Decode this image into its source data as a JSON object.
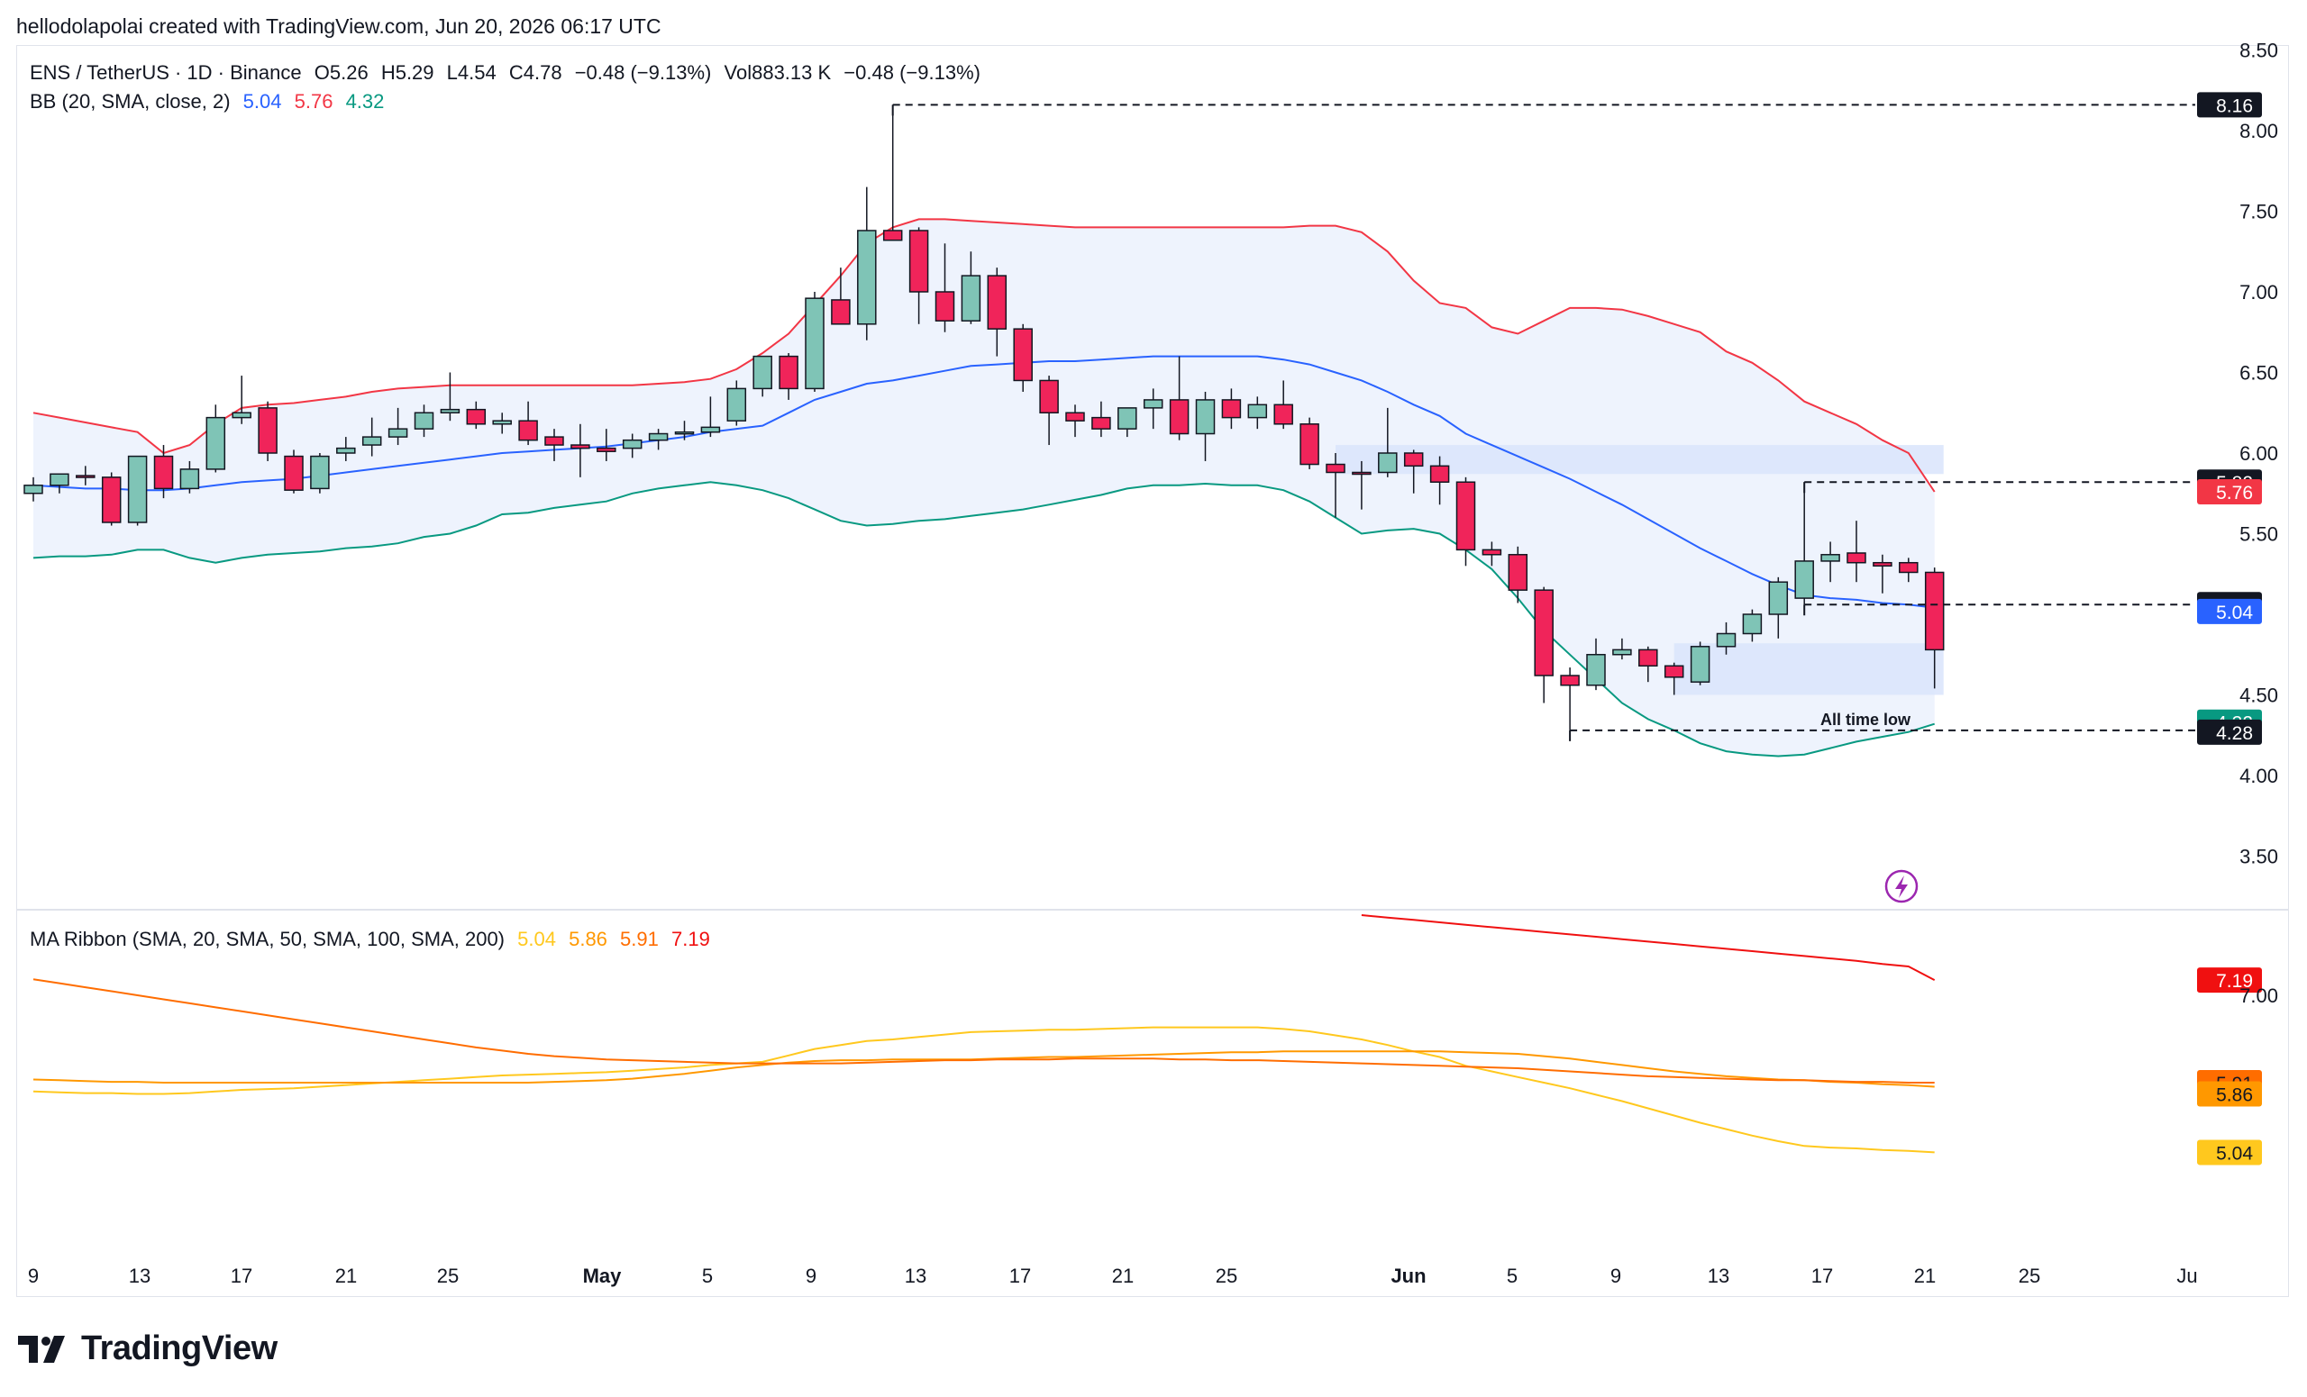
{
  "attribution": "hellodolapolai created with TradingView.com, Jun 20, 2026 06:17 UTC",
  "brand": "TradingView",
  "legend": {
    "main": {
      "symbol": "ENS / TetherUS · 1D · Binance",
      "open_label": "O",
      "open": "5.26",
      "high_label": "H",
      "high": "5.29",
      "low_label": "L",
      "low": "4.54",
      "close_label": "C",
      "close": "4.78",
      "change": "−0.48 (−9.13%)",
      "vol_label": "Vol",
      "vol": "883.13 K",
      "vol_change": "−0.48 (−9.13%)"
    },
    "bb": {
      "name": "BB (20, SMA, close, 2)",
      "basis": "5.04",
      "upper": "5.76",
      "lower": "4.32"
    },
    "ma": {
      "name": "MA Ribbon (SMA, 20, SMA, 50, SMA, 100, SMA, 200)",
      "ma20": "5.04",
      "ma50": "5.86",
      "ma100": "5.91",
      "ma200": "7.19"
    }
  },
  "colors": {
    "up": "#7fc4b6",
    "down": "#f0245a",
    "bb_basis": "#2962ff",
    "bb_upper": "#f23645",
    "bb_lower": "#089981",
    "bb_fill": "#eef3fd",
    "zone": "#d9e4fb",
    "ma20": "#ffc81e",
    "ma50": "#ff9800",
    "ma100": "#ff6d00",
    "ma200": "#f01010"
  },
  "annotations": {
    "all_time_low": "All time low"
  },
  "chart_data": [
    {
      "type": "candlestick",
      "title": "ENS / TetherUS · 1D · Binance",
      "ylim": [
        3.4,
        8.6
      ],
      "y_ticks": [
        "8.50",
        "8.00",
        "7.50",
        "7.00",
        "6.50",
        "6.00",
        "5.50",
        "4.50",
        "4.00",
        "3.50"
      ],
      "x_ticks": [
        "9",
        "13",
        "17",
        "21",
        "25",
        "May",
        "5",
        "9",
        "13",
        "17",
        "21",
        "25",
        "Jun",
        "5",
        "9",
        "13",
        "17",
        "21",
        "25",
        "Ju"
      ],
      "candles": [
        [
          5.75,
          5.85,
          5.7,
          5.8
        ],
        [
          5.8,
          5.86,
          5.75,
          5.87
        ],
        [
          5.86,
          5.92,
          5.8,
          5.85
        ],
        [
          5.85,
          5.88,
          5.55,
          5.57
        ],
        [
          5.57,
          5.98,
          5.55,
          5.98
        ],
        [
          5.98,
          6.05,
          5.72,
          5.78
        ],
        [
          5.78,
          5.95,
          5.75,
          5.9
        ],
        [
          5.9,
          6.3,
          5.88,
          6.22
        ],
        [
          6.22,
          6.48,
          6.18,
          6.25
        ],
        [
          6.28,
          6.32,
          5.95,
          6.0
        ],
        [
          5.98,
          6.02,
          5.75,
          5.77
        ],
        [
          5.78,
          6.0,
          5.75,
          5.98
        ],
        [
          6.0,
          6.1,
          5.95,
          6.03
        ],
        [
          6.05,
          6.22,
          5.98,
          6.1
        ],
        [
          6.1,
          6.28,
          6.05,
          6.15
        ],
        [
          6.15,
          6.3,
          6.1,
          6.25
        ],
        [
          6.25,
          6.5,
          6.2,
          6.27
        ],
        [
          6.27,
          6.32,
          6.15,
          6.18
        ],
        [
          6.18,
          6.25,
          6.12,
          6.2
        ],
        [
          6.2,
          6.32,
          6.05,
          6.08
        ],
        [
          6.1,
          6.15,
          5.95,
          6.05
        ],
        [
          6.05,
          6.18,
          5.85,
          6.03
        ],
        [
          6.03,
          6.15,
          5.95,
          6.01
        ],
        [
          6.03,
          6.12,
          5.97,
          6.08
        ],
        [
          6.08,
          6.15,
          6.02,
          6.12
        ],
        [
          6.12,
          6.2,
          6.08,
          6.13
        ],
        [
          6.13,
          6.35,
          6.1,
          6.16
        ],
        [
          6.2,
          6.45,
          6.17,
          6.4
        ],
        [
          6.4,
          6.6,
          6.35,
          6.6
        ],
        [
          6.6,
          6.62,
          6.33,
          6.4
        ],
        [
          6.4,
          7.0,
          6.38,
          6.96
        ],
        [
          6.95,
          7.15,
          6.8,
          6.8
        ],
        [
          6.8,
          7.65,
          6.7,
          7.38
        ],
        [
          7.38,
          8.16,
          7.32,
          7.32
        ],
        [
          7.38,
          7.4,
          6.8,
          7.0
        ],
        [
          7.0,
          7.3,
          6.75,
          6.82
        ],
        [
          6.82,
          7.25,
          6.8,
          7.1
        ],
        [
          7.1,
          7.15,
          6.6,
          6.77
        ],
        [
          6.77,
          6.8,
          6.38,
          6.45
        ],
        [
          6.45,
          6.48,
          6.05,
          6.25
        ],
        [
          6.25,
          6.3,
          6.1,
          6.2
        ],
        [
          6.22,
          6.32,
          6.1,
          6.15
        ],
        [
          6.15,
          6.28,
          6.1,
          6.28
        ],
        [
          6.28,
          6.4,
          6.15,
          6.33
        ],
        [
          6.33,
          6.6,
          6.08,
          6.12
        ],
        [
          6.12,
          6.38,
          5.95,
          6.33
        ],
        [
          6.33,
          6.4,
          6.15,
          6.22
        ],
        [
          6.22,
          6.35,
          6.15,
          6.3
        ],
        [
          6.3,
          6.45,
          6.15,
          6.18
        ],
        [
          6.18,
          6.22,
          5.9,
          5.93
        ],
        [
          5.93,
          6.0,
          5.6,
          5.88
        ],
        [
          5.88,
          5.95,
          5.65,
          5.87
        ],
        [
          5.88,
          6.28,
          5.85,
          6.0
        ],
        [
          6.0,
          6.02,
          5.75,
          5.92
        ],
        [
          5.92,
          5.98,
          5.68,
          5.82
        ],
        [
          5.82,
          5.85,
          5.3,
          5.4
        ],
        [
          5.4,
          5.45,
          5.3,
          5.37
        ],
        [
          5.37,
          5.42,
          5.07,
          5.15
        ],
        [
          5.15,
          5.17,
          4.45,
          4.62
        ],
        [
          4.62,
          4.67,
          4.28,
          4.56
        ],
        [
          4.56,
          4.85,
          4.53,
          4.75
        ],
        [
          4.75,
          4.85,
          4.72,
          4.78
        ],
        [
          4.78,
          4.8,
          4.58,
          4.68
        ],
        [
          4.68,
          4.7,
          4.5,
          4.61
        ],
        [
          4.58,
          4.83,
          4.56,
          4.8
        ],
        [
          4.8,
          4.95,
          4.75,
          4.88
        ],
        [
          4.88,
          5.03,
          4.83,
          5.0
        ],
        [
          5.0,
          5.23,
          4.85,
          5.2
        ],
        [
          5.1,
          5.82,
          5.06,
          5.33
        ],
        [
          5.33,
          5.45,
          5.2,
          5.37
        ],
        [
          5.38,
          5.58,
          5.2,
          5.32
        ],
        [
          5.32,
          5.37,
          5.13,
          5.3
        ],
        [
          5.32,
          5.35,
          5.2,
          5.26
        ],
        [
          5.26,
          5.29,
          4.54,
          4.78
        ]
      ]
    },
    {
      "type": "line",
      "title": "BB (20, SMA, close, 2)",
      "series": [
        {
          "name": "upper",
          "values": [
            6.25,
            6.22,
            6.19,
            6.16,
            6.13,
            6.0,
            6.05,
            6.18,
            6.28,
            6.3,
            6.31,
            6.33,
            6.35,
            6.38,
            6.4,
            6.41,
            6.42,
            6.42,
            6.42,
            6.42,
            6.42,
            6.42,
            6.42,
            6.42,
            6.43,
            6.44,
            6.46,
            6.52,
            6.62,
            6.74,
            6.92,
            7.1,
            7.3,
            7.4,
            7.45,
            7.45,
            7.44,
            7.43,
            7.42,
            7.41,
            7.4,
            7.4,
            7.4,
            7.4,
            7.4,
            7.4,
            7.4,
            7.4,
            7.4,
            7.41,
            7.41,
            7.37,
            7.25,
            7.07,
            6.93,
            6.9,
            6.78,
            6.74,
            6.82,
            6.9,
            6.9,
            6.89,
            6.85,
            6.8,
            6.75,
            6.63,
            6.56,
            6.45,
            6.32,
            6.25,
            6.18,
            6.08,
            6.0,
            5.76
          ]
        },
        {
          "name": "basis",
          "values": [
            5.8,
            5.79,
            5.78,
            5.78,
            5.77,
            5.77,
            5.78,
            5.8,
            5.82,
            5.83,
            5.84,
            5.86,
            5.88,
            5.9,
            5.92,
            5.94,
            5.96,
            5.98,
            6.0,
            6.01,
            6.02,
            6.03,
            6.04,
            6.06,
            6.08,
            6.1,
            6.13,
            6.15,
            6.17,
            6.25,
            6.33,
            6.38,
            6.43,
            6.45,
            6.48,
            6.51,
            6.54,
            6.55,
            6.56,
            6.57,
            6.57,
            6.58,
            6.59,
            6.6,
            6.6,
            6.6,
            6.6,
            6.6,
            6.58,
            6.55,
            6.5,
            6.45,
            6.38,
            6.3,
            6.23,
            6.12,
            6.05,
            5.98,
            5.91,
            5.84,
            5.76,
            5.68,
            5.59,
            5.5,
            5.41,
            5.33,
            5.25,
            5.18,
            5.12,
            5.1,
            5.09,
            5.07,
            5.06,
            5.04
          ]
        },
        {
          "name": "lower",
          "values": [
            5.35,
            5.36,
            5.36,
            5.37,
            5.4,
            5.4,
            5.35,
            5.32,
            5.35,
            5.37,
            5.38,
            5.39,
            5.41,
            5.42,
            5.44,
            5.48,
            5.5,
            5.55,
            5.62,
            5.63,
            5.66,
            5.68,
            5.7,
            5.75,
            5.78,
            5.8,
            5.82,
            5.8,
            5.77,
            5.72,
            5.65,
            5.58,
            5.55,
            5.56,
            5.58,
            5.59,
            5.61,
            5.63,
            5.65,
            5.68,
            5.71,
            5.74,
            5.78,
            5.8,
            5.8,
            5.81,
            5.8,
            5.8,
            5.77,
            5.7,
            5.6,
            5.5,
            5.52,
            5.53,
            5.5,
            5.4,
            5.28,
            5.1,
            4.9,
            4.75,
            4.6,
            4.45,
            4.35,
            4.28,
            4.2,
            4.15,
            4.13,
            4.12,
            4.13,
            4.17,
            4.21,
            4.24,
            4.27,
            4.32
          ]
        }
      ]
    },
    {
      "type": "line",
      "title": "MA Ribbon (SMA, 20, SMA, 50, SMA, 100, SMA, 200)",
      "series": [
        {
          "name": "ma20",
          "values": [
            5.8,
            5.79,
            5.78,
            5.78,
            5.77,
            5.77,
            5.78,
            5.8,
            5.82,
            5.83,
            5.84,
            5.86,
            5.88,
            5.9,
            5.92,
            5.94,
            5.96,
            5.98,
            6.0,
            6.01,
            6.02,
            6.03,
            6.04,
            6.06,
            6.08,
            6.1,
            6.13,
            6.15,
            6.17,
            6.25,
            6.33,
            6.38,
            6.43,
            6.45,
            6.48,
            6.51,
            6.54,
            6.55,
            6.56,
            6.57,
            6.57,
            6.58,
            6.59,
            6.6,
            6.6,
            6.6,
            6.6,
            6.6,
            6.58,
            6.55,
            6.5,
            6.45,
            6.38,
            6.3,
            6.23,
            6.12,
            6.05,
            5.98,
            5.91,
            5.84,
            5.76,
            5.68,
            5.59,
            5.5,
            5.41,
            5.33,
            5.25,
            5.18,
            5.12,
            5.1,
            5.09,
            5.07,
            5.06,
            5.04
          ]
        },
        {
          "name": "ma50",
          "values": [
            5.95,
            5.94,
            5.93,
            5.92,
            5.92,
            5.91,
            5.91,
            5.91,
            5.91,
            5.91,
            5.91,
            5.91,
            5.91,
            5.91,
            5.91,
            5.91,
            5.91,
            5.91,
            5.91,
            5.91,
            5.92,
            5.93,
            5.94,
            5.96,
            5.99,
            6.02,
            6.06,
            6.1,
            6.13,
            6.16,
            6.18,
            6.19,
            6.19,
            6.2,
            6.2,
            6.2,
            6.2,
            6.21,
            6.22,
            6.23,
            6.23,
            6.24,
            6.25,
            6.26,
            6.27,
            6.28,
            6.29,
            6.29,
            6.3,
            6.3,
            6.3,
            6.3,
            6.3,
            6.3,
            6.3,
            6.29,
            6.28,
            6.27,
            6.24,
            6.21,
            6.17,
            6.13,
            6.09,
            6.05,
            6.02,
            5.99,
            5.97,
            5.95,
            5.94,
            5.92,
            5.91,
            5.89,
            5.88,
            5.86
          ]
        },
        {
          "name": "ma100",
          "values": [
            7.2,
            7.15,
            7.1,
            7.05,
            7.0,
            6.95,
            6.9,
            6.85,
            6.8,
            6.75,
            6.7,
            6.65,
            6.6,
            6.55,
            6.5,
            6.45,
            6.4,
            6.35,
            6.31,
            6.27,
            6.24,
            6.22,
            6.2,
            6.19,
            6.18,
            6.17,
            6.16,
            6.15,
            6.15,
            6.15,
            6.15,
            6.15,
            6.16,
            6.17,
            6.18,
            6.19,
            6.19,
            6.2,
            6.2,
            6.2,
            6.21,
            6.21,
            6.21,
            6.21,
            6.2,
            6.2,
            6.19,
            6.19,
            6.18,
            6.17,
            6.16,
            6.15,
            6.14,
            6.13,
            6.12,
            6.11,
            6.1,
            6.09,
            6.07,
            6.05,
            6.03,
            6.01,
            5.99,
            5.98,
            5.97,
            5.96,
            5.95,
            5.94,
            5.94,
            5.93,
            5.92,
            5.92,
            5.91,
            5.91
          ]
        },
        {
          "name": "ma200",
          "values": [
            null,
            null,
            null,
            null,
            null,
            null,
            null,
            null,
            null,
            null,
            null,
            null,
            null,
            null,
            null,
            null,
            null,
            null,
            null,
            null,
            null,
            null,
            null,
            null,
            null,
            null,
            null,
            null,
            null,
            null,
            null,
            null,
            null,
            null,
            null,
            null,
            null,
            null,
            null,
            null,
            null,
            null,
            null,
            null,
            null,
            null,
            null,
            null,
            null,
            null,
            null,
            8.0,
            7.97,
            7.94,
            7.91,
            7.88,
            7.85,
            7.82,
            7.79,
            7.76,
            7.73,
            7.7,
            7.67,
            7.64,
            7.61,
            7.58,
            7.55,
            7.52,
            7.49,
            7.46,
            7.43,
            7.39,
            7.36,
            7.19
          ]
        }
      ],
      "price_labels": [
        "7.19",
        "7.00",
        "5.91",
        "5.86",
        "5.04"
      ]
    }
  ],
  "price_badges": [
    {
      "value": "8.16",
      "kind": "line"
    },
    {
      "value": "5.82",
      "kind": "line"
    },
    {
      "value": "5.76",
      "kind": "bb_upper"
    },
    {
      "value": "5.06",
      "kind": "line"
    },
    {
      "value": "5.04",
      "kind": "bb_basis"
    },
    {
      "value": "4.32",
      "kind": "bb_lower"
    },
    {
      "value": "4.28",
      "kind": "line"
    }
  ]
}
